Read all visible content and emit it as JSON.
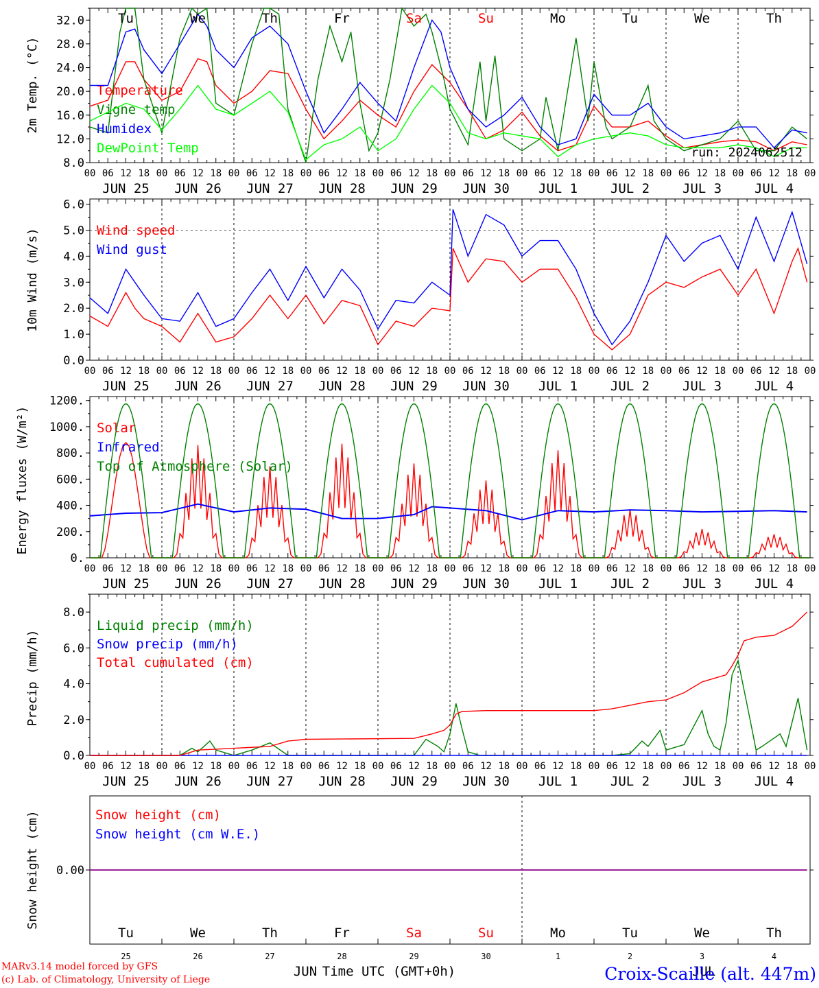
{
  "chart_data": [
    {
      "type": "line",
      "id": "temp",
      "ylabel": "2m Temp. (°C)",
      "ylim": [
        8,
        34
      ],
      "yticks": [
        "8.0",
        "12.0",
        "16.0",
        "20.0",
        "24.0",
        "28.0",
        "32.0"
      ],
      "annotation": "run: 2024062512",
      "grid": "dotted vertical at 00 UTC",
      "x_unit": "hours since JUN 25 00 UTC",
      "series": [
        {
          "name": "Temperature",
          "color": "#ff0000",
          "x": [
            0,
            6,
            12,
            15,
            18,
            24,
            30,
            36,
            39,
            42,
            48,
            54,
            60,
            66,
            72,
            78,
            84,
            90,
            96,
            102,
            108,
            114,
            120,
            126,
            132,
            138,
            144,
            150,
            156,
            162,
            168,
            174,
            180,
            186,
            192,
            198,
            204,
            210,
            216,
            222,
            228,
            234,
            239
          ],
          "y": [
            17.5,
            18.5,
            25,
            25,
            22,
            18.5,
            20,
            25.5,
            25,
            21,
            18,
            20,
            23.5,
            23,
            17,
            12,
            15,
            18.5,
            16,
            14,
            20,
            24.5,
            21.5,
            17,
            12,
            13.5,
            16.5,
            12.5,
            10,
            11,
            17.5,
            14,
            14,
            15,
            12.5,
            10.5,
            11,
            11.5,
            11.8,
            11.5,
            10,
            11.5,
            11
          ]
        },
        {
          "name": "Vigne temp",
          "color": "#008000",
          "x": [
            0,
            6,
            10,
            12,
            15,
            18,
            24,
            30,
            34,
            36,
            39,
            42,
            48,
            54,
            58,
            60,
            63,
            66,
            72,
            76,
            80,
            84,
            87,
            90,
            93,
            96,
            100,
            104,
            108,
            112,
            114,
            118,
            120,
            126,
            130,
            132,
            135,
            138,
            144,
            150,
            152,
            156,
            162,
            166,
            168,
            172,
            174,
            180,
            186,
            188,
            192,
            198,
            204,
            210,
            216,
            222,
            228,
            234,
            239
          ],
          "y": [
            14,
            13,
            30,
            35,
            34,
            22,
            13,
            29,
            35,
            33,
            34,
            18,
            16,
            28,
            35,
            34,
            33,
            17,
            8,
            22,
            31,
            25,
            30,
            18,
            10,
            13,
            22,
            34,
            31,
            33,
            30,
            22,
            17,
            11,
            25,
            15,
            26,
            12,
            10,
            12,
            19,
            10,
            29,
            15,
            25,
            14,
            12,
            14,
            21,
            15,
            12,
            10,
            11,
            12,
            15,
            10,
            10,
            14,
            12
          ]
        },
        {
          "name": "Humidex",
          "color": "#0000ff",
          "x": [
            0,
            6,
            12,
            15,
            18,
            24,
            30,
            36,
            39,
            42,
            48,
            54,
            60,
            66,
            72,
            78,
            84,
            90,
            96,
            102,
            108,
            114,
            117,
            120,
            126,
            132,
            138,
            144,
            150,
            156,
            162,
            168,
            174,
            180,
            186,
            192,
            198,
            204,
            210,
            216,
            222,
            228,
            234,
            239
          ],
          "y": [
            21,
            21,
            30,
            30.5,
            27,
            23,
            28,
            33,
            31,
            27,
            24,
            29,
            31,
            28,
            20,
            13,
            17,
            21.5,
            18,
            15,
            24,
            32,
            30,
            24,
            17,
            14,
            16,
            19,
            14,
            11,
            12,
            19.5,
            16,
            16,
            18,
            14,
            12,
            12.5,
            13,
            14,
            14,
            10.5,
            13.5,
            13
          ]
        },
        {
          "name": "DewPoint Temp",
          "color": "#00ff00",
          "x": [
            0,
            6,
            12,
            18,
            24,
            30,
            36,
            42,
            48,
            54,
            60,
            66,
            72,
            78,
            84,
            90,
            96,
            102,
            108,
            114,
            120,
            126,
            132,
            138,
            144,
            150,
            156,
            162,
            168,
            174,
            180,
            186,
            192,
            198,
            204,
            210,
            216,
            222,
            228,
            234,
            239
          ],
          "y": [
            15,
            16.5,
            18,
            17,
            13.5,
            17,
            21,
            17,
            16,
            18,
            20,
            16.5,
            8.5,
            11,
            12,
            14,
            10,
            12,
            17,
            21,
            18,
            13,
            12,
            13,
            12.5,
            12,
            9,
            11,
            12,
            12.5,
            13,
            12.5,
            11,
            10.5,
            10.5,
            10.5,
            11,
            10.5,
            9,
            10.5,
            10.5
          ]
        }
      ]
    },
    {
      "type": "line",
      "id": "wind",
      "ylabel": "10m Wind (m/s)",
      "ylim": [
        0,
        6
      ],
      "yticks": [
        "0.0",
        "1.0",
        "2.0",
        "3.0",
        "4.0",
        "5.0",
        "6.0"
      ],
      "hline": 5,
      "series": [
        {
          "name": "Wind speed",
          "color": "#ff0000",
          "x": [
            0,
            6,
            12,
            15,
            18,
            24,
            30,
            36,
            42,
            48,
            54,
            60,
            66,
            72,
            78,
            84,
            90,
            96,
            102,
            108,
            114,
            120,
            121,
            126,
            132,
            138,
            144,
            150,
            156,
            162,
            168,
            174,
            180,
            186,
            192,
            198,
            204,
            210,
            216,
            222,
            228,
            234,
            236,
            239
          ],
          "y": [
            1.7,
            1.3,
            2.6,
            2.0,
            1.6,
            1.3,
            0.7,
            1.8,
            0.7,
            0.9,
            1.6,
            2.5,
            1.6,
            2.5,
            1.4,
            2.3,
            2.1,
            0.6,
            1.5,
            1.3,
            2.0,
            1.9,
            4.3,
            3.0,
            3.9,
            3.8,
            3.0,
            3.5,
            3.5,
            2.4,
            1.0,
            0.4,
            1.0,
            2.5,
            3.0,
            2.8,
            3.2,
            3.5,
            2.5,
            3.5,
            1.8,
            3.8,
            4.3,
            3.0
          ]
        },
        {
          "name": "Wind gust",
          "color": "#0000ff",
          "x": [
            0,
            6,
            12,
            15,
            18,
            24,
            30,
            36,
            42,
            48,
            54,
            60,
            66,
            72,
            78,
            84,
            90,
            96,
            102,
            108,
            114,
            120,
            121,
            126,
            132,
            138,
            144,
            150,
            156,
            162,
            168,
            174,
            180,
            186,
            192,
            198,
            204,
            210,
            216,
            222,
            228,
            234,
            239
          ],
          "y": [
            2.4,
            1.8,
            3.5,
            3.0,
            2.5,
            1.6,
            1.5,
            2.6,
            1.3,
            1.6,
            2.6,
            3.5,
            2.3,
            3.6,
            2.4,
            3.5,
            2.7,
            1.2,
            2.3,
            2.2,
            3.0,
            2.5,
            5.8,
            4.0,
            5.6,
            5.2,
            4.0,
            4.6,
            4.6,
            3.5,
            1.8,
            0.6,
            1.5,
            3.0,
            4.8,
            3.8,
            4.5,
            4.8,
            3.5,
            5.5,
            3.8,
            5.7,
            3.7
          ]
        }
      ]
    },
    {
      "type": "line",
      "id": "energy",
      "ylabel": "Energy fluxes (W/m²)",
      "ylim": [
        0,
        1200
      ],
      "yticks": [
        "0.",
        "200.",
        "400.",
        "600.",
        "800.",
        "1000.",
        "1200."
      ],
      "series": [
        {
          "name": "Solar",
          "color": "#ff0000",
          "peaks": [
            [
              12,
              880
            ],
            [
              12,
              860
            ],
            [
              12,
              700
            ],
            [
              12,
              870
            ],
            [
              12,
              720
            ],
            [
              12,
              590
            ],
            [
              12,
              820
            ],
            [
              12,
              370
            ],
            [
              12,
              220
            ],
            [
              12,
              180
            ]
          ]
        },
        {
          "name": "Infrared",
          "color": "#0000ff",
          "x": [
            0,
            12,
            24,
            36,
            48,
            60,
            72,
            84,
            96,
            108,
            114,
            120,
            132,
            144,
            156,
            168,
            180,
            192,
            204,
            216,
            228,
            239
          ],
          "y": [
            320,
            340,
            345,
            410,
            350,
            380,
            370,
            300,
            300,
            330,
            390,
            380,
            360,
            290,
            360,
            350,
            365,
            360,
            350,
            355,
            360,
            350
          ]
        },
        {
          "name": "Top of Atmosphere (Solar)",
          "color": "#008000",
          "peak": 1175
        }
      ]
    },
    {
      "type": "line",
      "id": "precip",
      "ylabel": "Precip (mm/h)",
      "ylim": [
        0,
        9
      ],
      "yticks": [
        "0.0",
        "2.0",
        "4.0",
        "6.0",
        "8.0"
      ],
      "series": [
        {
          "name": "Liquid precip (mm/h)",
          "color": "#008000",
          "x": [
            0,
            30,
            34,
            36,
            40,
            42,
            48,
            54,
            60,
            66,
            72,
            108,
            112,
            116,
            118,
            120,
            122,
            124,
            126,
            130,
            168,
            174,
            180,
            184,
            186,
            190,
            192,
            198,
            204,
            206,
            208,
            210,
            212,
            214,
            216,
            220,
            222,
            224,
            230,
            232,
            236,
            239
          ],
          "y": [
            0,
            0,
            0.4,
            0.2,
            0.8,
            0.3,
            0,
            0.3,
            0.7,
            0,
            0,
            0,
            0.9,
            0.5,
            0.2,
            1.2,
            2.9,
            1.5,
            0.2,
            0,
            0,
            0,
            0.1,
            0.8,
            0.5,
            1.4,
            0.3,
            0.6,
            2.5,
            1.2,
            0.5,
            0.3,
            1.8,
            4.5,
            5.3,
            2.0,
            0.3,
            0.5,
            1.2,
            0.5,
            3.2,
            0.3
          ]
        },
        {
          "name": "Snow precip (mm/h)",
          "color": "#0000ff",
          "x": [
            0,
            239
          ],
          "y": [
            0,
            0
          ]
        },
        {
          "name": "Total cumulated (cm)",
          "color": "#ff0000",
          "x": [
            0,
            30,
            36,
            42,
            48,
            60,
            66,
            72,
            108,
            114,
            118,
            120,
            122,
            124,
            132,
            144,
            168,
            174,
            180,
            186,
            192,
            198,
            204,
            208,
            212,
            214,
            216,
            218,
            222,
            228,
            234,
            239
          ],
          "y": [
            0,
            0,
            0.3,
            0.35,
            0.4,
            0.5,
            0.8,
            0.9,
            0.95,
            1.2,
            1.4,
            1.7,
            2.3,
            2.45,
            2.5,
            2.5,
            2.5,
            2.6,
            2.8,
            3.0,
            3.1,
            3.5,
            4.1,
            4.3,
            4.5,
            5.0,
            5.6,
            6.4,
            6.6,
            6.7,
            7.2,
            8.0
          ]
        }
      ]
    },
    {
      "type": "line",
      "id": "snow",
      "ylabel": "Snow height (cm)",
      "yticks": [
        "0.00"
      ],
      "series": [
        {
          "name": "Snow height (cm)",
          "color": "#ff0000",
          "x": [
            0,
            239
          ],
          "y": [
            0,
            0
          ]
        },
        {
          "name": "Snow height (cm W.E.)",
          "color": "#0000ff",
          "x": [
            0,
            239
          ],
          "y": [
            0,
            0
          ]
        }
      ]
    }
  ],
  "x_axis": {
    "hour_ticks": [
      "00",
      "06",
      "12",
      "18"
    ],
    "last_tick": "00",
    "dates": [
      "JUN 25",
      "JUN 26",
      "JUN 27",
      "JUN 28",
      "JUN 29",
      "JUN 30",
      "JUL  1",
      "JUL  2",
      "JUL  3",
      "JUL  4"
    ],
    "days": [
      "Tu",
      "We",
      "Th",
      "Fr",
      "Sa",
      "Su",
      "Mo",
      "Tu",
      "We",
      "Th"
    ],
    "day_colors": [
      "#000000",
      "#000000",
      "#000000",
      "#000000",
      "#ff0000",
      "#ff0000",
      "#000000",
      "#000000",
      "#000000",
      "#000000"
    ],
    "day_numbers": [
      "25",
      "26",
      "27",
      "28",
      "29",
      "30",
      "1",
      "2",
      "3",
      "4"
    ],
    "month_labels": [
      "JUN",
      "JUL"
    ],
    "title": "Time UTC (GMT+0h)"
  },
  "footer": {
    "model": "MARv3.14 model forced by GFS",
    "credit": "(c) Lab. of Climatology, University of Liege",
    "station": "Croix-Scaille (alt. 447m)"
  }
}
